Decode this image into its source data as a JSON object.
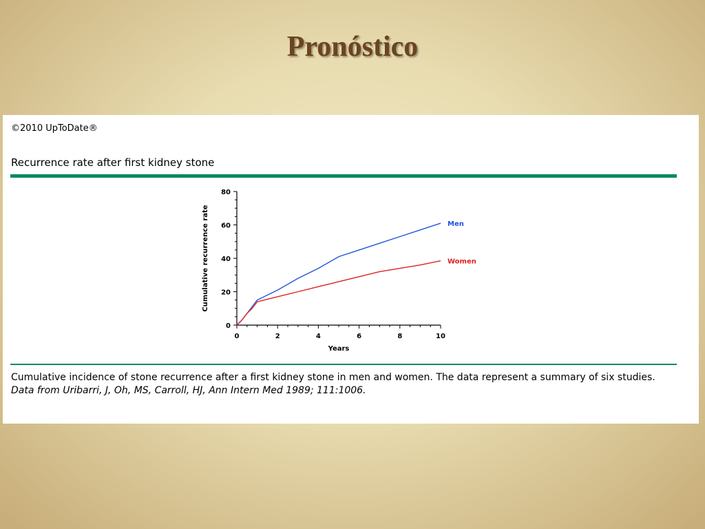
{
  "slide": {
    "title": "Pronóstico"
  },
  "figure": {
    "copyright": "©2010 UpToDate®",
    "title": "Recurrence rate after first kidney stone",
    "caption": "Cumulative incidence of stone recurrence after a first kidney stone in men and women. The data represent a summary of six studies.",
    "source": "Data from Uribarri, J, Oh, MS, Carroll, HJ, Ann Intern Med 1989; 111:1006."
  },
  "colors": {
    "men": "#2255dd",
    "women": "#dd2222",
    "rule": "#0e8a5a",
    "title": "#6b4421"
  },
  "chart_data": {
    "type": "line",
    "xlabel": "Years",
    "ylabel": "Cumulative recurrence rate",
    "xlim": [
      0,
      10
    ],
    "ylim": [
      0,
      80
    ],
    "xticks": [
      0,
      2,
      4,
      6,
      8,
      10
    ],
    "yticks": [
      0,
      20,
      40,
      60,
      80
    ],
    "grid": false,
    "legend": "inline-right",
    "series": [
      {
        "name": "Men",
        "x": [
          0,
          0.25,
          0.5,
          0.75,
          1,
          2,
          3,
          4,
          5,
          6,
          7,
          8,
          9,
          10
        ],
        "y": [
          0,
          3,
          7,
          11,
          15,
          21,
          28,
          34,
          41,
          45,
          49,
          53,
          57,
          61
        ]
      },
      {
        "name": "Women",
        "x": [
          0,
          0.25,
          0.5,
          0.75,
          1,
          2,
          3,
          4,
          5,
          6,
          7,
          8,
          9,
          10
        ],
        "y": [
          0,
          3,
          7,
          10,
          14,
          17,
          20,
          23,
          26,
          29,
          32,
          34,
          36,
          38.5
        ]
      }
    ]
  }
}
